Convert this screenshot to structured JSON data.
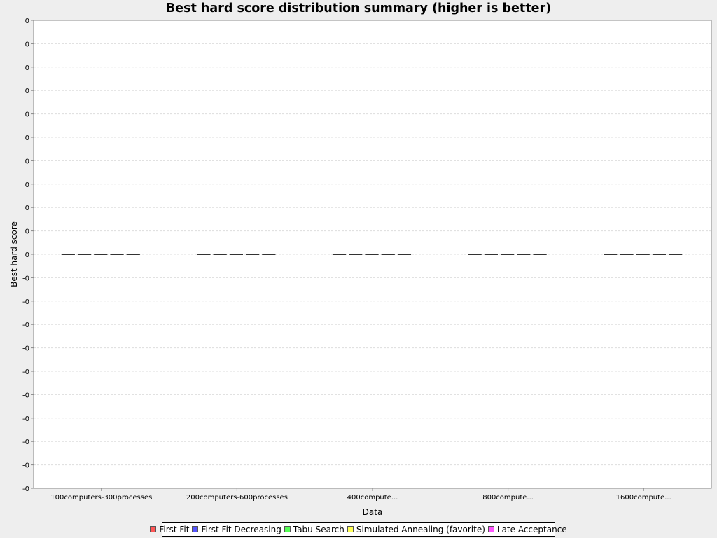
{
  "chart_data": {
    "type": "boxplot",
    "title": "Best hard score distribution summary (higher is better)",
    "xlabel": "Data",
    "ylabel": "Best hard score",
    "categories": [
      "100computers-300processes",
      "200computers-600processes",
      "400compute...",
      "800compute...",
      "1600compute..."
    ],
    "y_tick_labels": [
      "0",
      "0",
      "0",
      "0",
      "0",
      "0",
      "0",
      "0",
      "0",
      "0",
      "0",
      "-0",
      "-0",
      "-0",
      "-0",
      "-0",
      "-0",
      "-0",
      "-0",
      "-0",
      "-0"
    ],
    "ylim": [
      -1,
      1
    ],
    "grid": true,
    "legend_position": "bottom",
    "series": [
      {
        "name": "First Fit",
        "values": [
          0,
          0,
          0,
          0,
          0
        ],
        "color": "#ff5555"
      },
      {
        "name": "First Fit Decreasing",
        "values": [
          0,
          0,
          0,
          0,
          0
        ],
        "color": "#5555ff"
      },
      {
        "name": "Tabu Search",
        "values": [
          0,
          0,
          0,
          0,
          0
        ],
        "color": "#55ff55"
      },
      {
        "name": "Simulated Annealing (favorite)",
        "values": [
          0,
          0,
          0,
          0,
          0
        ],
        "color": "#ffff55"
      },
      {
        "name": "Late Acceptance",
        "values": [
          0,
          0,
          0,
          0,
          0
        ],
        "color": "#ff55ff"
      }
    ]
  }
}
